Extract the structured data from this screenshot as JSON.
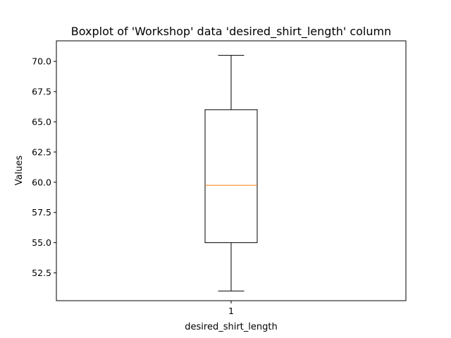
{
  "chart_data": {
    "type": "boxplot",
    "title": "Boxplot of 'Workshop' data 'desired_shirt_length' column",
    "xlabel": "desired_shirt_length",
    "ylabel": "Values",
    "categories": [
      "1"
    ],
    "boxes": [
      {
        "category": "1",
        "whisker_low": 51.0,
        "q1": 55.0,
        "median": 59.75,
        "q3": 66.0,
        "whisker_high": 70.5
      }
    ],
    "ylim": [
      50.2,
      71.7
    ],
    "yticks": [
      52.5,
      55.0,
      57.5,
      60.0,
      62.5,
      65.0,
      67.5,
      70.0
    ],
    "ytick_labels": [
      "52.5",
      "55.0",
      "57.5",
      "60.0",
      "62.5",
      "65.0",
      "67.5",
      "70.0"
    ],
    "grid": false,
    "colors": {
      "box": "#000000",
      "median": "#ff7f0e"
    }
  }
}
